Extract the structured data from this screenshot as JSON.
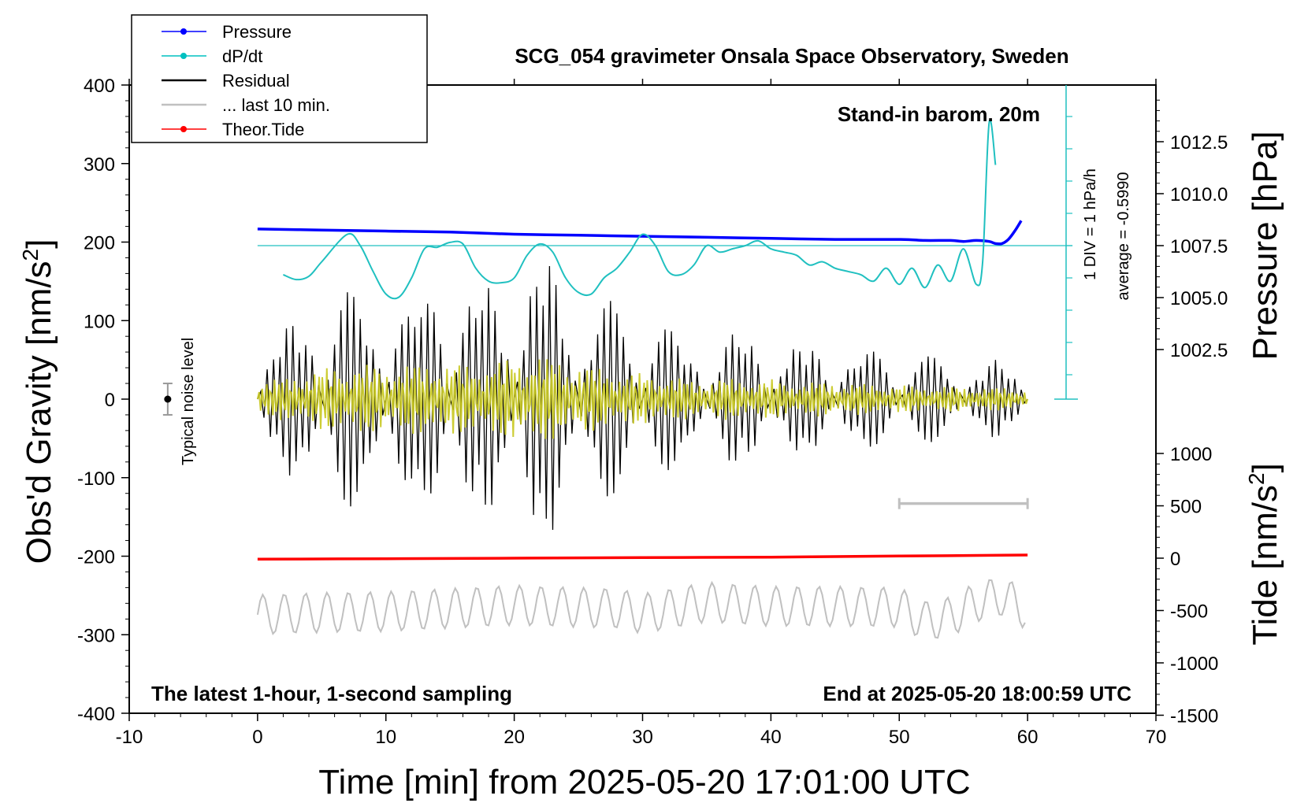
{
  "chart_data": {
    "type": "line",
    "title": "SCG_054 gravimeter Onsala Space Observatory, Sweden",
    "xlabel": "Time [min] from 2025-05-20 17:01:00 UTC",
    "ylabel_left_main": "Obs'd Gravity [nm/s",
    "ylabel_left_sup": "2",
    "ylabel_left_close": "]",
    "ylabel_right_pressure": "Pressure [hPa]",
    "ylabel_right_tide_main": "Tide [nm/s",
    "ylabel_right_tide_sup": "2",
    "ylabel_right_tide_close": "]",
    "xlim": [
      -10,
      70
    ],
    "ylim": [
      -400,
      400
    ],
    "x_ticks": [
      "-10",
      "0",
      "10",
      "20",
      "30",
      "40",
      "50",
      "60",
      "70"
    ],
    "y_ticks": [
      "400",
      "300",
      "200",
      "100",
      "0",
      "-100",
      "-200",
      "-300",
      "-400"
    ],
    "pressure_ticks": [
      "1012.5",
      "1010.0",
      "1007.5",
      "1005.0",
      "1002.5"
    ],
    "tide_ticks": [
      "1000",
      "500",
      "0",
      "-500",
      "-1000",
      "-1500"
    ],
    "annotations": {
      "stand_in": "Stand-in barom. 20m",
      "div": "1 DIV = 1 hPa/h",
      "average": "average = -0.5990",
      "noise": "Typical noise level",
      "latest": "The latest 1-hour, 1-second sampling",
      "end_at": "End at 2025-05-20 18:00:59 UTC"
    },
    "legend": {
      "placement": "top-left",
      "entries": [
        {
          "label": "Pressure",
          "color": "#0000ff",
          "marker": true
        },
        {
          "label": "dP/dt",
          "color": "#00c0c0",
          "marker": true
        },
        {
          "label": "Residual",
          "color": "#000000",
          "marker": false
        },
        {
          "label": "... last 10 min.",
          "color": "#c0c0c0",
          "marker": false
        },
        {
          "label": "Theor.Tide",
          "color": "#ff0000",
          "marker": true
        }
      ]
    },
    "colors": {
      "pressure": "#0000ff",
      "dpdt": "#20c0c0",
      "residual": "#000000",
      "residual_fill": "#c8c820",
      "last10": "#c0c0c0",
      "tide": "#ff0000"
    },
    "series": {
      "pressure_hPa": {
        "x": [
          0,
          5,
          10,
          15,
          20,
          25,
          30,
          35,
          40,
          45,
          50,
          52,
          54,
          55,
          56,
          57,
          57.5,
          58,
          58.5,
          59,
          59.5
        ],
        "y": [
          1008.3,
          1008.25,
          1008.2,
          1008.15,
          1008.05,
          1008.0,
          1007.95,
          1007.9,
          1007.85,
          1007.8,
          1007.8,
          1007.75,
          1007.75,
          1007.7,
          1007.75,
          1007.7,
          1007.6,
          1007.6,
          1007.8,
          1008.2,
          1008.7
        ]
      },
      "dpdt_hPa_per_h": {
        "average": -0.599,
        "x": [
          2,
          3,
          4,
          5,
          7,
          8,
          9,
          10,
          11,
          12,
          13,
          14,
          15,
          16,
          17,
          18,
          19,
          20,
          21,
          22,
          23,
          24,
          25,
          26,
          27,
          28,
          29,
          30,
          31,
          32,
          33,
          34,
          35,
          36,
          37,
          38,
          39,
          40,
          41,
          42,
          43,
          44,
          45,
          46,
          47,
          48,
          49,
          50,
          51,
          52,
          53,
          54,
          55,
          56,
          56.5,
          57,
          57.5
        ],
        "y": [
          -0.9,
          -1.05,
          -0.95,
          -0.5,
          0.35,
          0.0,
          -0.8,
          -1.5,
          -1.6,
          -1.0,
          -0.1,
          -0.05,
          0.1,
          0.05,
          -0.7,
          -1.1,
          -1.15,
          -1.0,
          -0.3,
          0.05,
          -0.2,
          -1.0,
          -1.45,
          -1.5,
          -1.0,
          -0.7,
          -0.2,
          0.35,
          0.0,
          -0.8,
          -0.9,
          -0.6,
          0.0,
          -0.2,
          -0.1,
          0.0,
          0.15,
          -0.1,
          -0.2,
          -0.3,
          -0.6,
          -0.5,
          -0.7,
          -0.8,
          -0.9,
          -1.1,
          -0.7,
          -1.2,
          -0.7,
          -1.3,
          -0.6,
          -1.1,
          -0.1,
          -1.2,
          -0.5,
          3.8,
          2.5
        ]
      },
      "residual_envelope_nm_s2": {
        "x": [
          0,
          2,
          4,
          6,
          8,
          10,
          12,
          14,
          16,
          18,
          20,
          22,
          24,
          26,
          28,
          30,
          32,
          34,
          36,
          38,
          40,
          42,
          44,
          46,
          48,
          50,
          52,
          54,
          56,
          58,
          60
        ],
        "y": [
          80,
          90,
          120,
          140,
          150,
          140,
          150,
          160,
          150,
          150,
          180,
          190,
          160,
          140,
          120,
          110,
          100,
          80,
          90,
          85,
          85,
          70,
          75,
          70,
          65,
          60,
          55,
          55,
          50,
          50,
          40
        ]
      },
      "residual_last10_nm_s2": {
        "x": [
          50,
          60
        ],
        "y": [
          -133,
          -133
        ]
      },
      "tide_nm_s2": {
        "x": [
          0,
          10,
          20,
          30,
          40,
          50,
          60
        ],
        "y": [
          -10,
          -5,
          0,
          5,
          10,
          20,
          30
        ]
      },
      "last10_min_nm_s2": {
        "x": [
          0,
          5,
          10,
          15,
          20,
          25,
          28,
          30,
          35,
          40,
          45,
          50,
          52,
          54,
          56,
          58,
          60
        ],
        "y": [
          -540,
          -520,
          -510,
          -480,
          -450,
          -470,
          -480,
          -530,
          -420,
          -460,
          -460,
          -470,
          -600,
          -560,
          -420,
          -360,
          -500
        ]
      }
    }
  }
}
